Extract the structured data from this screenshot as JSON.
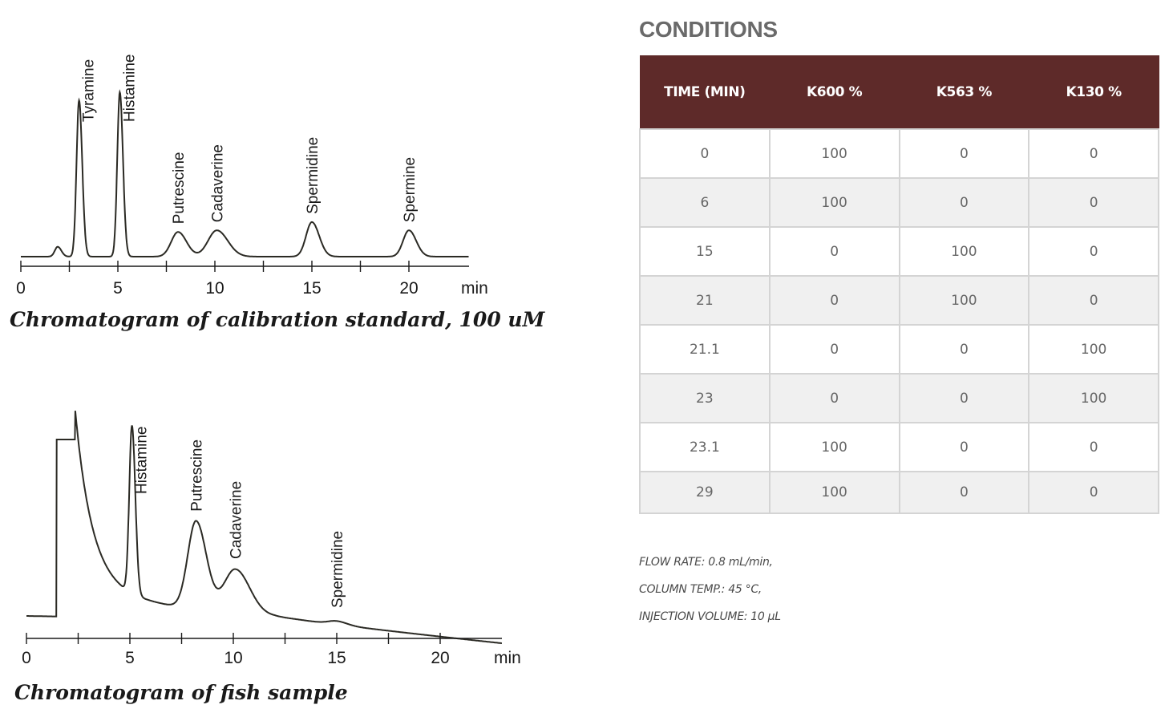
{
  "chart_data": [
    {
      "type": "line",
      "title": "Chromatogram of calibration standard, 100 uM",
      "xlabel": "min",
      "xlim": [
        0,
        23
      ],
      "x_ticks": [
        0,
        5,
        10,
        15,
        20
      ],
      "y_units": "relative",
      "peaks": [
        {
          "name": "",
          "rt": 1.9,
          "height": 0.06,
          "width": 0.15
        },
        {
          "name": "Tyramine",
          "rt": 3.0,
          "height": 0.95,
          "width": 0.13
        },
        {
          "name": "Histamine",
          "rt": 5.1,
          "height": 1.0,
          "width": 0.13
        },
        {
          "name": "Putrescine",
          "rt": 8.1,
          "height": 0.15,
          "width": 0.35
        },
        {
          "name": "Cadaverine",
          "rt": 10.1,
          "height": 0.16,
          "width": 0.45
        },
        {
          "name": "Spermidine",
          "rt": 15.0,
          "height": 0.21,
          "width": 0.3
        },
        {
          "name": "Spermine",
          "rt": 20.0,
          "height": 0.16,
          "width": 0.3
        }
      ]
    },
    {
      "type": "line",
      "title": "Chromatogram of fish sample",
      "xlabel": "min",
      "xlim": [
        0,
        23
      ],
      "x_ticks": [
        0,
        5,
        10,
        15,
        20
      ],
      "y_units": "relative",
      "peaks": [
        {
          "name": "Histamine",
          "rt": 5.1,
          "height": 0.95,
          "width": 0.13
        },
        {
          "name": "Putrescine",
          "rt": 8.2,
          "height": 0.5,
          "width": 0.4
        },
        {
          "name": "Cadaverine",
          "rt": 10.1,
          "height": 0.25,
          "width": 0.55
        },
        {
          "name": "Spermidine",
          "rt": 15.0,
          "height": 0.02,
          "width": 0.4
        }
      ]
    }
  ],
  "conditions": {
    "heading": "CONDITIONS",
    "columns": [
      "TIME (MIN)",
      "K600 %",
      "K563 %",
      "K130 %"
    ],
    "rows": [
      [
        "0",
        "100",
        "0",
        "0"
      ],
      [
        "6",
        "100",
        "0",
        "0"
      ],
      [
        "15",
        "0",
        "100",
        "0"
      ],
      [
        "21",
        "0",
        "100",
        "0"
      ],
      [
        "21.1",
        "0",
        "0",
        "100"
      ],
      [
        "23",
        "0",
        "0",
        "100"
      ],
      [
        "23.1",
        "100",
        "0",
        "0"
      ],
      [
        "29",
        "100",
        "0",
        "0"
      ]
    ],
    "notes": [
      "FLOW RATE: 0.8 mL/min,",
      "COLUMN TEMP.: 45 °C,",
      "INJECTION VOLUME: 10 µL"
    ]
  },
  "colors": {
    "header_bg": "#5e2a29",
    "trace": "#2b2a24",
    "row_alt": "#f0f0f0"
  }
}
